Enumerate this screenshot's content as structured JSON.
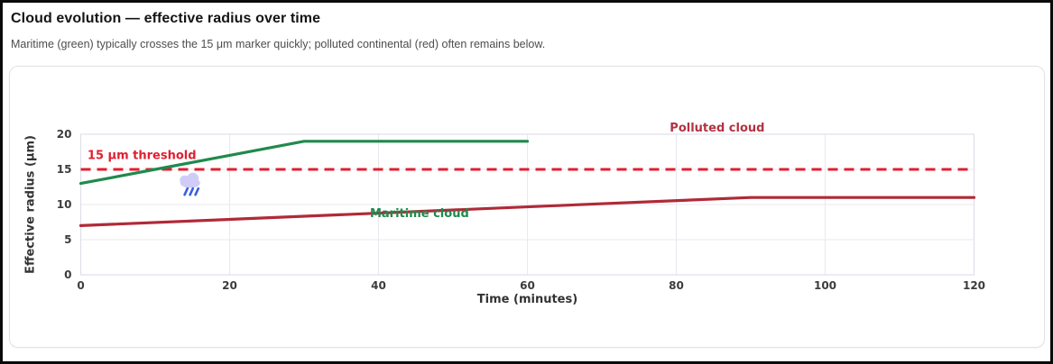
{
  "header": {
    "title": "Cloud evolution — effective radius over time",
    "subtitle": "Maritime (green) typically crosses the 15 μm marker quickly; polluted continental (red) often remains below."
  },
  "chart_data": {
    "type": "line",
    "title": "",
    "xlabel": "Time (minutes)",
    "ylabel": "Effective radius (μm)",
    "xlim": [
      0,
      120
    ],
    "ylim": [
      0,
      20
    ],
    "xticks": [
      0,
      20,
      40,
      60,
      80,
      100,
      120
    ],
    "yticks": [
      0,
      5,
      10,
      15,
      20
    ],
    "grid": true,
    "legend_position": "inline-annotations",
    "series": [
      {
        "name": "Maritime cloud",
        "color": "#1f8a4d",
        "x": [
          0,
          10,
          20,
          30,
          40,
          50,
          60
        ],
        "y": [
          13,
          15,
          17,
          19,
          19,
          19,
          19
        ]
      },
      {
        "name": "Polluted cloud",
        "color": "#b02a37",
        "x": [
          0,
          30,
          60,
          90,
          120
        ],
        "y": [
          7,
          8.33,
          9.67,
          11,
          11
        ]
      }
    ],
    "threshold": {
      "y": 15,
      "label": "15 μm threshold",
      "color": "#e01f31",
      "style": "dashed"
    },
    "annotations": [
      {
        "id": "threshold-label",
        "text": "15 μm threshold",
        "x": 0.9,
        "y": 16.5,
        "color": "#e01f31",
        "anchor": "start"
      },
      {
        "id": "polluted-cloud-label",
        "text": "Polluted cloud",
        "x": 85.5,
        "y": 20.4,
        "color": "#b23341",
        "anchor": "middle"
      },
      {
        "id": "maritime-cloud-label",
        "text": "Maritime cloud",
        "x": 45.5,
        "y": 8.2,
        "color": "#1f8a4d",
        "anchor": "middle"
      },
      {
        "id": "rain-cloud-emoji",
        "text": "🌧️",
        "x": 14.7,
        "y": 12.8,
        "kind": "rain-cloud"
      }
    ],
    "style": {
      "grid_color": "#e8e8f0",
      "border_color": "#dfdfe8",
      "tick_color": "#3c3c3c",
      "axis_label_color": "#333333",
      "emoji_cloud_color": "#cfcdf7",
      "emoji_rain_color": "#3b5fe0"
    }
  }
}
